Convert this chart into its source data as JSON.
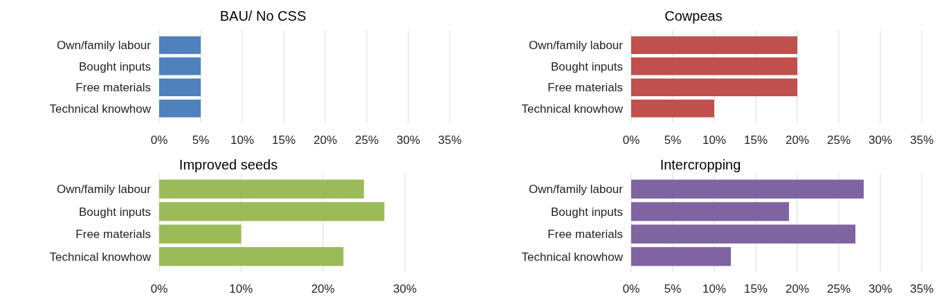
{
  "chart_data": [
    {
      "type": "bar",
      "orientation": "horizontal",
      "title": "BAU/ No CSS",
      "categories": [
        "Own/family labour",
        "Bought inputs",
        "Free materials",
        "Technical knowhow"
      ],
      "values": [
        5,
        5,
        5,
        5
      ],
      "color": "#4f81bd",
      "xlim": [
        0,
        35
      ],
      "xticks": [
        {
          "value": 0,
          "label": "0%"
        },
        {
          "value": 5,
          "label": "5%"
        },
        {
          "value": 10,
          "label": "10%"
        },
        {
          "value": 15,
          "label": "15%"
        },
        {
          "value": 20,
          "label": "20%"
        },
        {
          "value": 25,
          "label": "25%"
        },
        {
          "value": 30,
          "label": "30%"
        },
        {
          "value": 35,
          "label": "35%"
        }
      ],
      "grid": "x"
    },
    {
      "type": "bar",
      "orientation": "horizontal",
      "title": "Cowpeas",
      "categories": [
        "Own/family labour",
        "Bought inputs",
        "Free materials",
        "Technical knowhow"
      ],
      "values": [
        20,
        20,
        20,
        10
      ],
      "color": "#c0504d",
      "xlim": [
        0,
        35
      ],
      "xticks": [
        {
          "value": 0,
          "label": "0%"
        },
        {
          "value": 5,
          "label": "5%"
        },
        {
          "value": 10,
          "label": "10%"
        },
        {
          "value": 15,
          "label": "15%"
        },
        {
          "value": 20,
          "label": "20%"
        },
        {
          "value": 25,
          "label": "25%"
        },
        {
          "value": 30,
          "label": "30%"
        },
        {
          "value": 35,
          "label": "35%"
        }
      ],
      "grid": "x"
    },
    {
      "type": "bar",
      "orientation": "horizontal",
      "title": "Improved seeds",
      "categories": [
        "Own/family labour",
        "Bought inputs",
        "Free materials",
        "Technical knowhow"
      ],
      "values": [
        25,
        27.5,
        10,
        22.5
      ],
      "color": "#9bbb59",
      "xlim": [
        0,
        30
      ],
      "xticks": [
        {
          "value": 0,
          "label": "0%"
        },
        {
          "value": 10,
          "label": "10%"
        },
        {
          "value": 20,
          "label": "20%"
        },
        {
          "value": 30,
          "label": "30%"
        }
      ],
      "grid": "x"
    },
    {
      "type": "bar",
      "orientation": "horizontal",
      "title": "Intercropping",
      "categories": [
        "Own/family labour",
        "Bought inputs",
        "Free materials",
        "Technical knowhow"
      ],
      "values": [
        28,
        19,
        27,
        12
      ],
      "color": "#8064a2",
      "xlim": [
        0,
        35
      ],
      "xticks": [
        {
          "value": 0,
          "label": "0%"
        },
        {
          "value": 5,
          "label": "5%"
        },
        {
          "value": 10,
          "label": "10%"
        },
        {
          "value": 15,
          "label": "15%"
        },
        {
          "value": 20,
          "label": "20%"
        },
        {
          "value": 25,
          "label": "25%"
        },
        {
          "value": 30,
          "label": "30%"
        },
        {
          "value": 35,
          "label": "35%"
        }
      ],
      "grid": "x"
    }
  ]
}
